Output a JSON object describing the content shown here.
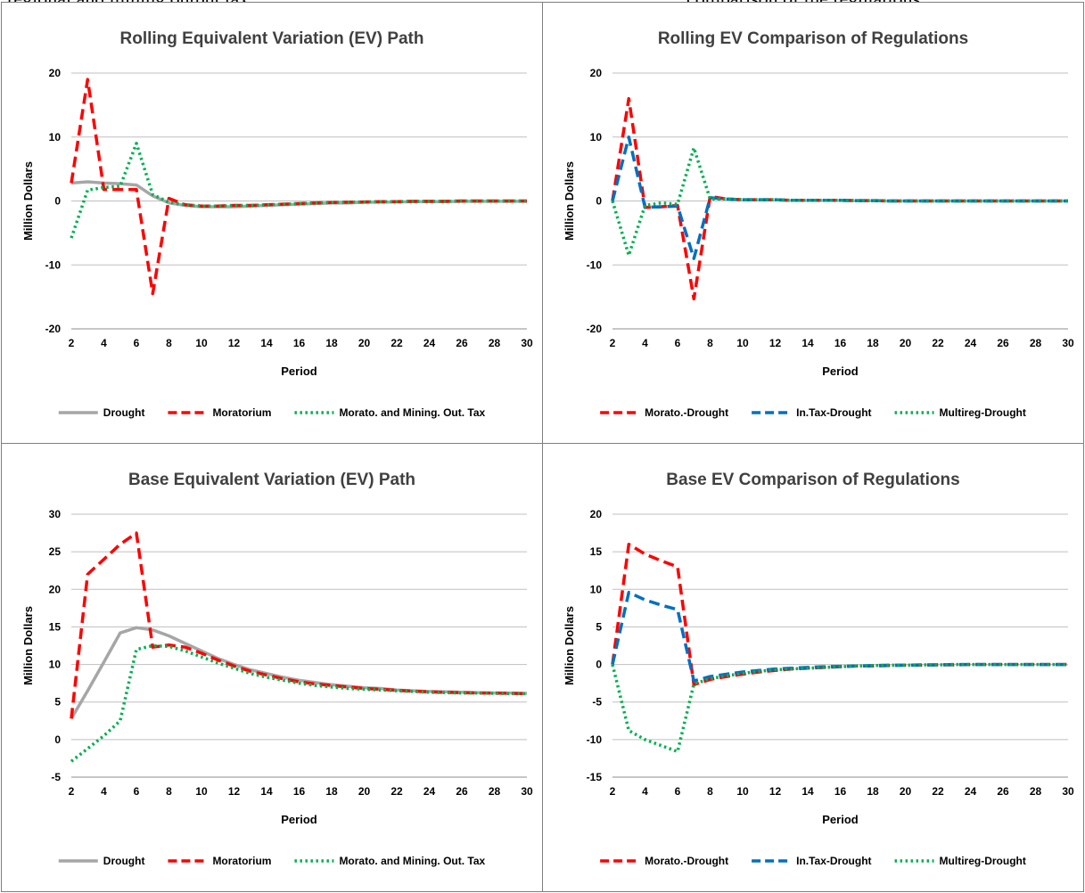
{
  "page_header": {
    "left_fragment": "regional and mining output tax",
    "right_fragment": "comparison of the regulations"
  },
  "chart_data": [
    {
      "type": "line",
      "title": "Rolling Equivalent Variation (EV) Path",
      "xlabel": "Period",
      "ylabel": "Million Dollars",
      "x": [
        2,
        3,
        4,
        5,
        6,
        7,
        8,
        9,
        10,
        11,
        12,
        13,
        14,
        15,
        16,
        17,
        18,
        19,
        20,
        21,
        22,
        23,
        24,
        25,
        26,
        27,
        28,
        29,
        30
      ],
      "xticks": [
        2,
        4,
        6,
        8,
        10,
        12,
        14,
        16,
        18,
        20,
        22,
        24,
        26,
        28,
        30
      ],
      "xlim": [
        2,
        30
      ],
      "ylim": [
        -20,
        20
      ],
      "yticks": [
        -20,
        -10,
        0,
        10,
        20
      ],
      "grid": "horizontal",
      "legend": "bottom",
      "series": [
        {
          "name": "Drought",
          "color": "#a6a6a6",
          "dash": "solid",
          "values": [
            2.8,
            3.0,
            2.8,
            2.7,
            2.5,
            0.8,
            -0.3,
            -0.7,
            -0.9,
            -0.9,
            -0.9,
            -0.8,
            -0.7,
            -0.6,
            -0.5,
            -0.4,
            -0.3,
            -0.3,
            -0.2,
            -0.2,
            -0.15,
            -0.1,
            -0.1,
            -0.1,
            -0.05,
            -0.05,
            -0.05,
            -0.05,
            -0.05
          ]
        },
        {
          "name": "Moratorium",
          "color": "#ff0000",
          "dash": "dashed",
          "values": [
            2.8,
            19.0,
            1.8,
            1.8,
            1.8,
            -14.5,
            0.4,
            -0.6,
            -0.8,
            -0.8,
            -0.7,
            -0.7,
            -0.6,
            -0.5,
            -0.4,
            -0.3,
            -0.25,
            -0.2,
            -0.15,
            -0.1,
            -0.1,
            -0.05,
            -0.05,
            -0.05,
            0,
            0,
            0,
            0,
            0
          ]
        },
        {
          "name": "Morato. and Mining. Out. Tax",
          "color": "#00b050",
          "dash": "dotted",
          "values": [
            -5.8,
            1.7,
            2.1,
            2.3,
            9.0,
            1.0,
            -0.2,
            -0.6,
            -0.8,
            -0.8,
            -0.7,
            -0.7,
            -0.6,
            -0.5,
            -0.4,
            -0.3,
            -0.25,
            -0.2,
            -0.15,
            -0.1,
            -0.1,
            -0.05,
            -0.05,
            -0.05,
            0,
            0,
            0,
            0,
            0
          ]
        }
      ]
    },
    {
      "type": "line",
      "title": "Rolling EV Comparison of Regulations",
      "xlabel": "Period",
      "ylabel": "Million Dollars",
      "x": [
        2,
        3,
        4,
        5,
        6,
        7,
        8,
        9,
        10,
        11,
        12,
        13,
        14,
        15,
        16,
        17,
        18,
        19,
        20,
        21,
        22,
        23,
        24,
        25,
        26,
        27,
        28,
        29,
        30
      ],
      "xticks": [
        2,
        4,
        6,
        8,
        10,
        12,
        14,
        16,
        18,
        20,
        22,
        24,
        26,
        28,
        30
      ],
      "xlim": [
        2,
        30
      ],
      "ylim": [
        -20,
        20
      ],
      "yticks": [
        -20,
        -10,
        0,
        10,
        20
      ],
      "grid": "horizontal",
      "legend": "bottom",
      "series": [
        {
          "name": "Morato.-Drought",
          "color": "#ff0000",
          "dash": "dashed",
          "values": [
            0,
            16.0,
            -1.0,
            -0.9,
            -0.7,
            -15.3,
            0.7,
            0.3,
            0.2,
            0.2,
            0.2,
            0.1,
            0.1,
            0.1,
            0.1,
            0.05,
            0.05,
            0,
            0,
            0,
            0,
            0,
            0,
            0,
            0,
            0,
            0,
            0,
            0
          ]
        },
        {
          "name": "In.Tax-Drought",
          "color": "#0070c0",
          "dash": "dashed",
          "values": [
            0,
            10.0,
            -1.0,
            -0.9,
            -0.8,
            -9.0,
            0.5,
            0.3,
            0.2,
            0.2,
            0.2,
            0.1,
            0.1,
            0.1,
            0.1,
            0.05,
            0.05,
            0,
            0,
            0,
            0,
            0,
            0,
            0,
            0,
            0,
            0,
            0,
            0
          ]
        },
        {
          "name": "Multireg-Drought",
          "color": "#00b050",
          "dash": "dotted",
          "values": [
            0,
            -8.5,
            -0.7,
            -0.3,
            -0.5,
            8.3,
            0.3,
            0.3,
            0.2,
            0.2,
            0.2,
            0.1,
            0.1,
            0.1,
            0.1,
            0.05,
            0.05,
            0,
            0,
            0,
            0,
            0,
            0,
            0,
            0,
            0,
            0,
            0,
            0
          ]
        }
      ]
    },
    {
      "type": "line",
      "title": "Base Equivalent Variation (EV) Path",
      "xlabel": "Period",
      "ylabel": "Million Dollars",
      "x": [
        2,
        3,
        4,
        5,
        6,
        7,
        8,
        9,
        10,
        11,
        12,
        13,
        14,
        15,
        16,
        17,
        18,
        19,
        20,
        21,
        22,
        23,
        24,
        25,
        26,
        27,
        28,
        29,
        30
      ],
      "xticks": [
        2,
        4,
        6,
        8,
        10,
        12,
        14,
        16,
        18,
        20,
        22,
        24,
        26,
        28,
        30
      ],
      "xlim": [
        2,
        30
      ],
      "ylim": [
        -5,
        30
      ],
      "yticks": [
        -5,
        0,
        5,
        10,
        15,
        20,
        25,
        30
      ],
      "grid": "horizontal",
      "legend": "bottom",
      "series": [
        {
          "name": "Drought",
          "color": "#a6a6a6",
          "dash": "solid",
          "values": [
            2.8,
            6.5,
            10.3,
            14.2,
            14.9,
            14.6,
            13.8,
            12.8,
            11.8,
            10.8,
            10.0,
            9.3,
            8.8,
            8.3,
            7.9,
            7.6,
            7.3,
            7.1,
            6.9,
            6.8,
            6.6,
            6.5,
            6.4,
            6.35,
            6.3,
            6.25,
            6.2,
            6.2,
            6.15
          ]
        },
        {
          "name": "Moratorium",
          "color": "#ff0000",
          "dash": "dashed",
          "values": [
            2.8,
            22.0,
            24.0,
            26.0,
            27.5,
            12.3,
            12.6,
            12.3,
            11.5,
            10.6,
            9.8,
            9.1,
            8.6,
            8.1,
            7.7,
            7.4,
            7.2,
            7.0,
            6.8,
            6.7,
            6.55,
            6.45,
            6.35,
            6.3,
            6.25,
            6.2,
            6.2,
            6.15,
            6.1
          ]
        },
        {
          "name": "Morato. and Mining. Out. Tax",
          "color": "#00b050",
          "dash": "dotted",
          "values": [
            -2.9,
            -1.2,
            0.5,
            2.5,
            12.0,
            12.5,
            12.4,
            11.8,
            11.0,
            10.2,
            9.5,
            8.8,
            8.3,
            7.9,
            7.5,
            7.2,
            7.0,
            6.8,
            6.7,
            6.6,
            6.5,
            6.4,
            6.3,
            6.25,
            6.2,
            6.2,
            6.15,
            6.1,
            6.1
          ]
        }
      ]
    },
    {
      "type": "line",
      "title": "Base EV Comparison of Regulations",
      "xlabel": "Period",
      "ylabel": "Million Dollars",
      "x": [
        2,
        3,
        4,
        5,
        6,
        7,
        8,
        9,
        10,
        11,
        12,
        13,
        14,
        15,
        16,
        17,
        18,
        19,
        20,
        21,
        22,
        23,
        24,
        25,
        26,
        27,
        28,
        29,
        30
      ],
      "xticks": [
        2,
        4,
        6,
        8,
        10,
        12,
        14,
        16,
        18,
        20,
        22,
        24,
        26,
        28,
        30
      ],
      "xlim": [
        2,
        30
      ],
      "ylim": [
        -15,
        20
      ],
      "yticks": [
        -15,
        -10,
        -5,
        0,
        5,
        10,
        15,
        20
      ],
      "grid": "horizontal",
      "legend": "bottom",
      "series": [
        {
          "name": "Morato.-Drought",
          "color": "#ff0000",
          "dash": "dashed",
          "values": [
            0,
            16.0,
            14.7,
            13.8,
            13.0,
            -2.7,
            -2.0,
            -1.6,
            -1.3,
            -1.0,
            -0.8,
            -0.6,
            -0.5,
            -0.4,
            -0.3,
            -0.2,
            -0.2,
            -0.15,
            -0.1,
            -0.1,
            -0.05,
            -0.05,
            0,
            0,
            0,
            0,
            0,
            0,
            0
          ]
        },
        {
          "name": "In.Tax-Drought",
          "color": "#0070c0",
          "dash": "dashed",
          "values": [
            0,
            9.6,
            8.6,
            7.9,
            7.3,
            -2.2,
            -1.6,
            -1.3,
            -1.0,
            -0.8,
            -0.6,
            -0.5,
            -0.4,
            -0.3,
            -0.25,
            -0.2,
            -0.15,
            -0.1,
            -0.1,
            -0.05,
            -0.05,
            0,
            0,
            0,
            0,
            0,
            0,
            0,
            0
          ]
        },
        {
          "name": "Multireg-Drought",
          "color": "#00b050",
          "dash": "dotted",
          "values": [
            0,
            -8.8,
            -10.0,
            -10.8,
            -11.6,
            -2.6,
            -1.9,
            -1.5,
            -1.2,
            -0.9,
            -0.7,
            -0.6,
            -0.5,
            -0.4,
            -0.3,
            -0.2,
            -0.15,
            -0.1,
            -0.1,
            -0.05,
            -0.05,
            0,
            0,
            0,
            0,
            0,
            0,
            0,
            0
          ]
        }
      ]
    }
  ]
}
